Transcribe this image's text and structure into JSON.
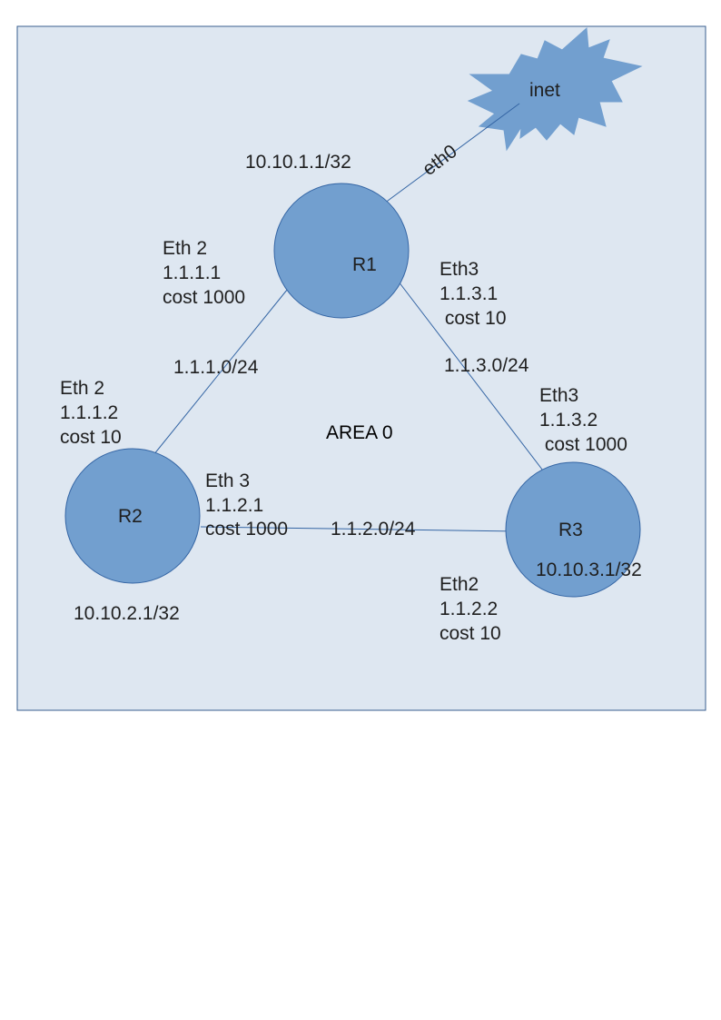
{
  "colors": {
    "area_fill": "#dee7f1",
    "area_border": "#3a5f8f",
    "node_fill": "#729fcf",
    "node_stroke": "#3465a4",
    "link": "#3465a4",
    "text": "#1f1f1f"
  },
  "area": {
    "label": "AREA 0"
  },
  "internet": {
    "label": "inet",
    "icon": "cloud-burst-icon"
  },
  "routers": {
    "r1": {
      "name": "R1",
      "loopback": "10.10.1.1/32"
    },
    "r2": {
      "name": "R2",
      "loopback": "10.10.2.1/32"
    },
    "r3": {
      "name": "R3",
      "loopback": "10.10.3.1/32"
    }
  },
  "links": {
    "uplink": {
      "label": "eth0"
    },
    "r1_r2": {
      "subnet": "1.1.1.0/24"
    },
    "r1_r3": {
      "subnet": "1.1.3.0/24"
    },
    "r2_r3": {
      "subnet": "1.1.2.0/24"
    }
  },
  "interfaces": {
    "r1_eth2": [
      "Eth 2",
      "1.1.1.1",
      "cost 1000"
    ],
    "r1_eth3": [
      "Eth3",
      "1.1.3.1",
      " cost 10"
    ],
    "r2_eth2": [
      "Eth 2",
      "1.1.1.2",
      "cost 10"
    ],
    "r2_eth3": [
      "Eth 3",
      "1.1.2.1",
      "cost 1000"
    ],
    "r3_eth3": [
      "Eth3",
      "1.1.3.2",
      " cost 1000"
    ],
    "r3_eth2": [
      "Eth2",
      "1.1.2.2",
      "cost 10"
    ]
  }
}
